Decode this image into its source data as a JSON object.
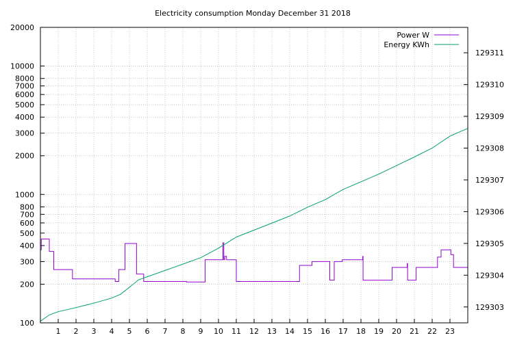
{
  "chart_data": {
    "type": "line",
    "title": "Electricity consumption Monday December 31 2018",
    "xlabel": "",
    "ylabel": "",
    "y2label": "",
    "xlim": [
      0,
      24
    ],
    "ylim": [
      100,
      20000
    ],
    "y_scale": "log",
    "y2lim": [
      129302.5,
      129311.8
    ],
    "grid": true,
    "legend_position": "top-right",
    "x_ticks": [
      1,
      2,
      3,
      4,
      5,
      6,
      7,
      8,
      9,
      10,
      11,
      12,
      13,
      14,
      15,
      16,
      17,
      18,
      19,
      20,
      21,
      22,
      23
    ],
    "y_ticks": [
      {
        "value": 100,
        "label": "100"
      },
      {
        "value": 200,
        "label": "200"
      },
      {
        "value": 300,
        "label": "300"
      },
      {
        "value": 400,
        "label": "400"
      },
      {
        "value": 500,
        "label": "500"
      },
      {
        "value": 600,
        "label": "600"
      },
      {
        "value": 700,
        "label": "700"
      },
      {
        "value": 800,
        "label": "800"
      },
      {
        "value": 1000,
        "label": "1000"
      },
      {
        "value": 2000,
        "label": "2000"
      },
      {
        "value": 3000,
        "label": "3000"
      },
      {
        "value": 4000,
        "label": "4000"
      },
      {
        "value": 5000,
        "label": "5000"
      },
      {
        "value": 6000,
        "label": "6000"
      },
      {
        "value": 7000,
        "label": "7000"
      },
      {
        "value": 8000,
        "label": "8000"
      },
      {
        "value": 10000,
        "label": "10000"
      },
      {
        "value": 20000,
        "label": "20000"
      }
    ],
    "y2_ticks": [
      129303,
      129304,
      129305,
      129306,
      129307,
      129308,
      129309,
      129310,
      129311
    ],
    "series": [
      {
        "name": "Power W",
        "axis": "y",
        "color": "#9400d3",
        "step": true,
        "x": [
          0,
          0.05,
          0.5,
          0.75,
          1.8,
          4.2,
          4.4,
          4.75,
          5.4,
          5.8,
          8.2,
          9.25,
          10.25,
          10.3,
          10.35,
          10.45,
          11.0,
          14.5,
          14.55,
          15.25,
          16.25,
          16.5,
          16.95,
          18.1,
          18.12,
          18.15,
          19.75,
          20.6,
          20.62,
          20.65,
          21.1,
          22.3,
          22.5,
          23.05,
          23.2,
          24
        ],
        "y": [
          370,
          450,
          360,
          260,
          220,
          210,
          260,
          415,
          240,
          210,
          208,
          310,
          420,
          310,
          330,
          310,
          210,
          210,
          280,
          300,
          215,
          300,
          310,
          330,
          215,
          215,
          270,
          290,
          215,
          215,
          270,
          325,
          370,
          340,
          270,
          270
        ]
      },
      {
        "name": "Energy KWh",
        "axis": "y2",
        "color": "#009e73",
        "x": [
          0,
          0.5,
          1,
          2,
          3,
          4,
          4.5,
          5,
          5.5,
          6,
          7,
          8,
          9,
          10,
          11,
          12,
          13,
          14,
          15,
          16,
          17,
          18,
          19,
          20,
          21,
          22,
          23,
          24
        ],
        "y": [
          129302.55,
          129302.75,
          129302.85,
          129302.98,
          129303.12,
          129303.28,
          129303.4,
          129303.62,
          129303.85,
          129303.95,
          129304.15,
          129304.35,
          129304.55,
          129304.85,
          129305.2,
          129305.42,
          129305.64,
          129305.86,
          129306.14,
          129306.38,
          129306.7,
          129306.94,
          129307.18,
          129307.45,
          129307.72,
          129308.0,
          129308.38,
          129308.62
        ]
      }
    ]
  }
}
